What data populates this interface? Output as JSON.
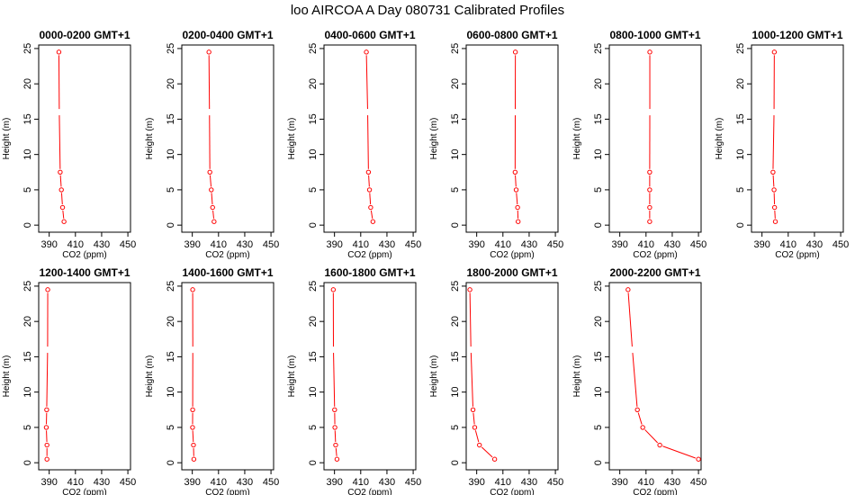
{
  "figure": {
    "title": "loo AIRCOA A  Day 080731  Calibrated Profiles",
    "line_color": "#ff0000",
    "axis_color": "#000000"
  },
  "chart_data": [
    {
      "type": "line",
      "title": "0000-0200 GMT+1",
      "xlabel": "CO2 (ppm)",
      "ylabel": "Height (m)",
      "xlim": [
        382,
        452
      ],
      "ylim": [
        -1,
        25.5
      ],
      "xticks": [
        390,
        410,
        430,
        450
      ],
      "yticks": [
        0,
        5,
        10,
        15,
        20,
        25
      ],
      "x": [
        401.3,
        400.2,
        399.3,
        398.4,
        397.7,
        397.4
      ],
      "y": [
        0.5,
        2.5,
        5,
        7.5,
        16,
        24.5
      ]
    },
    {
      "type": "line",
      "title": "0200-0400 GMT+1",
      "xlabel": "CO2 (ppm)",
      "ylabel": "Height (m)",
      "xlim": [
        382,
        452
      ],
      "ylim": [
        -1,
        25.5
      ],
      "xticks": [
        390,
        410,
        430,
        450
      ],
      "yticks": [
        0,
        5,
        10,
        15,
        20,
        25
      ],
      "x": [
        406.6,
        405.5,
        404.5,
        403.4,
        403.1,
        402.7
      ],
      "y": [
        0.5,
        2.5,
        5,
        7.5,
        16,
        24.5
      ]
    },
    {
      "type": "line",
      "title": "0400-0600 GMT+1",
      "xlabel": "CO2 (ppm)",
      "ylabel": "Height (m)",
      "xlim": [
        382,
        452
      ],
      "ylim": [
        -1,
        25.5
      ],
      "xticks": [
        390,
        410,
        430,
        450
      ],
      "yticks": [
        0,
        5,
        10,
        15,
        20,
        25
      ],
      "x": [
        419.3,
        417.6,
        416.7,
        415.9,
        415.3,
        414.3
      ],
      "y": [
        0.5,
        2.5,
        5,
        7.5,
        16,
        24.5
      ]
    },
    {
      "type": "line",
      "title": "0600-0800 GMT+1",
      "xlabel": "CO2 (ppm)",
      "ylabel": "Height (m)",
      "xlim": [
        382,
        452
      ],
      "ylim": [
        -1,
        25.5
      ],
      "xticks": [
        390,
        410,
        430,
        450
      ],
      "yticks": [
        0,
        5,
        10,
        15,
        20,
        25
      ],
      "x": [
        421.6,
        421.2,
        420.1,
        419.3,
        419.4,
        419.5
      ],
      "y": [
        0.5,
        2.5,
        5,
        7.5,
        16,
        24.5
      ]
    },
    {
      "type": "line",
      "title": "0800-1000 GMT+1",
      "xlabel": "CO2 (ppm)",
      "ylabel": "Height (m)",
      "xlim": [
        382,
        452
      ],
      "ylim": [
        -1,
        25.5
      ],
      "xticks": [
        390,
        410,
        430,
        450
      ],
      "yticks": [
        0,
        5,
        10,
        15,
        20,
        25
      ],
      "x": [
        412.8,
        412.8,
        412.8,
        412.8,
        412.9,
        412.9
      ],
      "y": [
        0.5,
        2.5,
        5,
        7.5,
        16,
        24.5
      ]
    },
    {
      "type": "line",
      "title": "1000-1200 GMT+1",
      "xlabel": "CO2 (ppm)",
      "ylabel": "Height (m)",
      "xlim": [
        382,
        452
      ],
      "ylim": [
        -1,
        25.5
      ],
      "xticks": [
        390,
        410,
        430,
        450
      ],
      "yticks": [
        0,
        5,
        10,
        15,
        20,
        25
      ],
      "x": [
        400.2,
        399.6,
        399.2,
        398.4,
        399.2,
        399.4
      ],
      "y": [
        0.5,
        2.5,
        5,
        7.5,
        16,
        24.5
      ]
    },
    {
      "type": "line",
      "title": "1200-1400 GMT+1",
      "xlabel": "CO2 (ppm)",
      "ylabel": "Height (m)",
      "xlim": [
        382,
        452
      ],
      "ylim": [
        -1,
        25.5
      ],
      "xticks": [
        390,
        410,
        430,
        450
      ],
      "yticks": [
        0,
        5,
        10,
        15,
        20,
        25
      ],
      "x": [
        388.3,
        388.3,
        387.8,
        388.1,
        388.8,
        388.9
      ],
      "y": [
        0.5,
        2.5,
        5,
        7.5,
        16,
        24.5
      ]
    },
    {
      "type": "line",
      "title": "1400-1600 GMT+1",
      "xlabel": "CO2 (ppm)",
      "ylabel": "Height (m)",
      "xlim": [
        382,
        452
      ],
      "ylim": [
        -1,
        25.5
      ],
      "xticks": [
        390,
        410,
        430,
        450
      ],
      "yticks": [
        0,
        5,
        10,
        15,
        20,
        25
      ],
      "x": [
        391.2,
        390.9,
        390.2,
        390.3,
        390.4,
        390.3
      ],
      "y": [
        0.5,
        2.5,
        5,
        7.5,
        16,
        24.5
      ]
    },
    {
      "type": "line",
      "title": "1600-1800 GMT+1",
      "xlabel": "CO2 (ppm)",
      "ylabel": "Height (m)",
      "xlim": [
        382,
        452
      ],
      "ylim": [
        -1,
        25.5
      ],
      "xticks": [
        390,
        410,
        430,
        450
      ],
      "yticks": [
        0,
        5,
        10,
        15,
        20,
        25
      ],
      "x": [
        391.9,
        390.9,
        390.3,
        390.1,
        389.2,
        389.1
      ],
      "y": [
        0.5,
        2.5,
        5,
        7.5,
        16,
        24.5
      ]
    },
    {
      "type": "line",
      "title": "1800-2000 GMT+1",
      "xlabel": "CO2 (ppm)",
      "ylabel": "Height (m)",
      "xlim": [
        382,
        452
      ],
      "ylim": [
        -1,
        25.5
      ],
      "xticks": [
        390,
        410,
        430,
        450
      ],
      "yticks": [
        0,
        5,
        10,
        15,
        20,
        25
      ],
      "x": [
        403.7,
        392.1,
        388.5,
        387.2,
        385.6,
        384.8
      ],
      "y": [
        0.5,
        2.5,
        5,
        7.5,
        16,
        24.5
      ]
    },
    {
      "type": "line",
      "title": "2000-2200 GMT+1",
      "xlabel": "CO2 (ppm)",
      "ylabel": "Height (m)",
      "xlim": [
        382,
        452
      ],
      "ylim": [
        -1,
        25.5
      ],
      "xticks": [
        390,
        410,
        430,
        450
      ],
      "yticks": [
        0,
        5,
        10,
        15,
        20,
        25
      ],
      "x": [
        450.0,
        420.5,
        407.5,
        403.4,
        399.6,
        396.3
      ],
      "y": [
        0.5,
        2.5,
        5,
        7.5,
        16,
        24.5
      ]
    }
  ]
}
